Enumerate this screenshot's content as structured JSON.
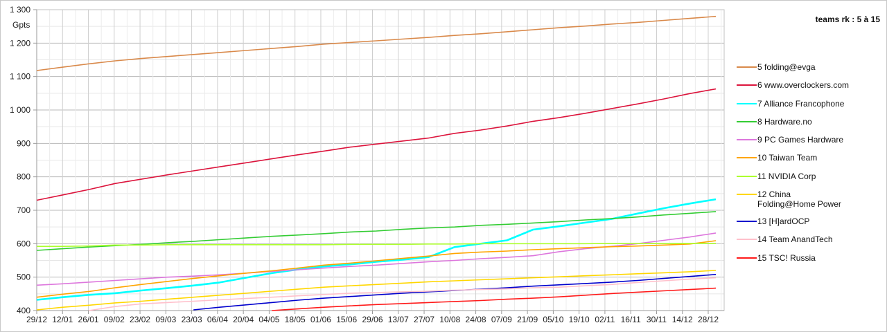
{
  "chart_data": {
    "type": "line",
    "title": "teams rk : 5 à 15",
    "ylabel": "Gpts",
    "xlabel": "",
    "ylim": [
      400,
      1300
    ],
    "yticks": [
      "400",
      "500",
      "600",
      "700",
      "800",
      "900",
      "1 000",
      "1 100",
      "1 200",
      "1 300"
    ],
    "grid": true,
    "legend_position": "right",
    "x": [
      "29/12",
      "12/01",
      "26/01",
      "09/02",
      "23/02",
      "09/03",
      "23/03",
      "06/04",
      "20/04",
      "04/05",
      "18/05",
      "01/06",
      "15/06",
      "29/06",
      "13/07",
      "27/07",
      "10/08",
      "24/08",
      "07/09",
      "21/09",
      "05/10",
      "19/10",
      "02/11",
      "16/11",
      "30/11",
      "14/12",
      "28/12"
    ],
    "series": [
      {
        "name": "5 folding@evga",
        "color": "#d9894a",
        "values": [
          1118,
          1128,
          1138,
          1147,
          1154,
          1160,
          1166,
          1172,
          1178,
          1184,
          1190,
          1197,
          1202,
          1207,
          1212,
          1217,
          1223,
          1228,
          1234,
          1240,
          1246,
          1251,
          1257,
          1262,
          1268,
          1274,
          1280
        ]
      },
      {
        "name": "6 www.overclockers.com",
        "color": "#dc143c",
        "values": [
          730,
          746,
          762,
          780,
          793,
          806,
          818,
          830,
          842,
          854,
          866,
          877,
          889,
          898,
          907,
          916,
          930,
          940,
          952,
          966,
          977,
          990,
          1004,
          1018,
          1033,
          1049,
          1063
        ]
      },
      {
        "name": "7 Alliance Francophone",
        "color": "#00ffff",
        "values": [
          432,
          440,
          447,
          452,
          460,
          467,
          475,
          484,
          498,
          512,
          523,
          532,
          538,
          546,
          552,
          560,
          590,
          600,
          610,
          642,
          652,
          663,
          674,
          690,
          706,
          720,
          733
        ]
      },
      {
        "name": "8 Hardware.no",
        "color": "#33cc33",
        "values": [
          580,
          585,
          590,
          594,
          598,
          603,
          607,
          612,
          617,
          622,
          626,
          630,
          635,
          638,
          643,
          647,
          650,
          655,
          658,
          662,
          666,
          671,
          675,
          680,
          686,
          691,
          696
        ]
      },
      {
        "name": "9 PC Games Hardware",
        "color": "#dd77dd",
        "values": [
          476,
          480,
          485,
          490,
          495,
          500,
          503,
          507,
          512,
          517,
          522,
          527,
          532,
          536,
          541,
          546,
          550,
          555,
          559,
          564,
          576,
          585,
          592,
          600,
          610,
          620,
          632
        ]
      },
      {
        "name": "10 Taiwan Team",
        "color": "#ffa500",
        "values": [
          440,
          449,
          457,
          468,
          478,
          487,
          496,
          504,
          512,
          519,
          527,
          536,
          542,
          549,
          556,
          563,
          571,
          575,
          578,
          582,
          585,
          588,
          591,
          593,
          596,
          599,
          609
        ]
      },
      {
        "name": "11 NVIDIA Corp",
        "color": "#adff2f",
        "values": [
          592,
          592,
          593,
          596,
          596,
          597,
          597,
          597,
          597,
          597,
          597,
          597,
          598,
          598,
          598,
          599,
          599,
          600,
          600,
          600,
          600,
          600,
          601,
          601,
          601,
          601,
          601
        ]
      },
      {
        "name": "12 China Folding@Home Power",
        "color": "#ffd700",
        "values": [
          402,
          410,
          416,
          423,
          428,
          434,
          440,
          446,
          452,
          458,
          464,
          470,
          474,
          478,
          482,
          486,
          489,
          492,
          495,
          498,
          501,
          504,
          507,
          510,
          513,
          516,
          520
        ]
      },
      {
        "name": "13 [H]ardOCP",
        "color": "#0000cd",
        "values": [
          null,
          null,
          null,
          null,
          null,
          null,
          402,
          410,
          417,
          424,
          431,
          437,
          442,
          447,
          452,
          456,
          460,
          464,
          468,
          473,
          477,
          481,
          485,
          490,
          496,
          502,
          508
        ]
      },
      {
        "name": "14 Team AnandTech",
        "color": "#ffc0cb",
        "values": [
          null,
          null,
          400,
          412,
          420,
          424,
          428,
          432,
          436,
          440,
          444,
          448,
          452,
          454,
          456,
          458,
          461,
          463,
          465,
          468,
          470,
          474,
          478,
          484,
          489,
          494,
          498
        ]
      },
      {
        "name": "15 TSC! Russia",
        "color": "#ff1a1a",
        "values": [
          null,
          null,
          null,
          null,
          null,
          null,
          null,
          null,
          null,
          400,
          405,
          410,
          414,
          418,
          421,
          424,
          427,
          430,
          434,
          437,
          441,
          446,
          451,
          455,
          459,
          463,
          467
        ]
      }
    ]
  },
  "chart": {
    "title": "teams rk : 5 à 15",
    "unit": "Gpts"
  }
}
